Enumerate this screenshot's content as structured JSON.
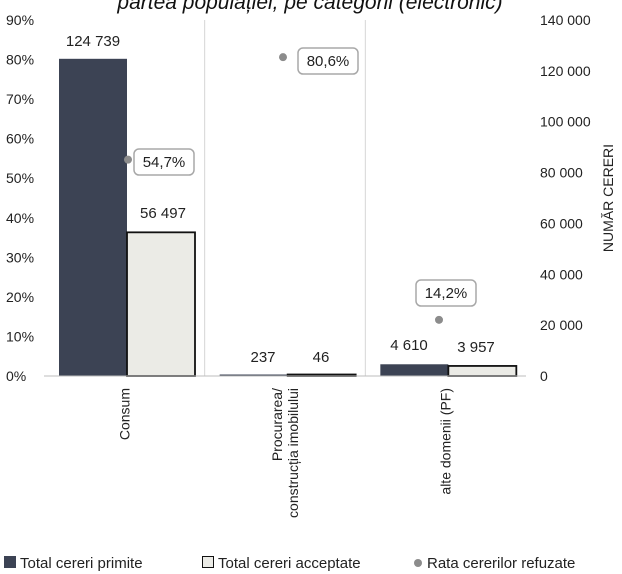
{
  "chart_data": {
    "type": "bar",
    "title": "partea populației, pe categorii (electronic)",
    "categories": [
      "Consum",
      "Procurarea/\nconstrucția imobilului",
      "alte domenii (PF)"
    ],
    "series": [
      {
        "name": "Total cereri primite",
        "axis": "right",
        "values": [
          124739,
          237,
          4610
        ],
        "labels": [
          "124 739",
          "237",
          "4 610"
        ],
        "color": "#3c4354"
      },
      {
        "name": "Total cereri acceptate",
        "axis": "right",
        "values": [
          56497,
          46,
          3957
        ],
        "labels": [
          "56 497",
          "46",
          "3 957"
        ],
        "color": "#ebebe6"
      },
      {
        "name": "Rata cererilor refuzate",
        "axis": "left",
        "type": "scatter",
        "values": [
          54.7,
          80.6,
          14.2
        ],
        "labels": [
          "54,7%",
          "80,6%",
          "14,2%"
        ],
        "color": "#8c8c8c"
      }
    ],
    "y_left": {
      "ylim": [
        0,
        90
      ],
      "ticks": [
        "0%",
        "10%",
        "20%",
        "30%",
        "40%",
        "50%",
        "60%",
        "70%",
        "80%",
        "90%"
      ]
    },
    "y_right": {
      "label": "NUMĂR CERERI",
      "ylim": [
        0,
        140000
      ],
      "ticks": [
        "0",
        "20 000",
        "40 000",
        "60 000",
        "80 000",
        "100 000",
        "120 000",
        "140 000"
      ]
    },
    "legend": "bottom",
    "grid": false
  }
}
